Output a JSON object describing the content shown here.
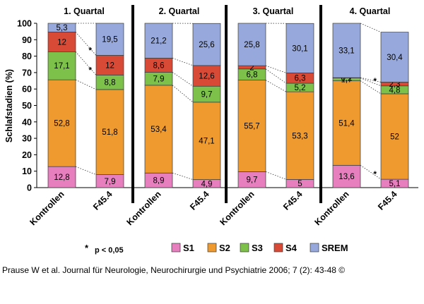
{
  "chart_data": {
    "type": "bar",
    "stacked": true,
    "ylabel": "Schlafstadien (%)",
    "ylim": [
      0,
      100
    ],
    "yticks": [
      0,
      10,
      20,
      30,
      40,
      50,
      60,
      70,
      80,
      90,
      100
    ],
    "stages": [
      "S1",
      "S2",
      "S3",
      "S4",
      "SREM"
    ],
    "colors": {
      "S1": "#e77fbf",
      "S2": "#ee9a2e",
      "S3": "#7dc04a",
      "S4": "#d94a36",
      "SREM": "#97a9dc"
    },
    "panels": [
      {
        "title": "1. Quartal",
        "bars": [
          {
            "category": "Kontrollen",
            "values": {
              "S1": 12.8,
              "S2": 52.8,
              "S3": 17.1,
              "S4": 12,
              "SREM": 5.3
            }
          },
          {
            "category": "F45.4",
            "values": {
              "S1": 7.9,
              "S2": 51.8,
              "S3": 8.8,
              "S4": 12,
              "SREM": 19.5
            }
          }
        ],
        "significance": [
          "S3",
          "S4"
        ]
      },
      {
        "title": "2. Quartal",
        "bars": [
          {
            "category": "Kontrollen",
            "values": {
              "S1": 8.9,
              "S2": 53.4,
              "S3": 7.9,
              "S4": 8.6,
              "SREM": 21.2
            }
          },
          {
            "category": "F45.4",
            "values": {
              "S1": 4.9,
              "S2": 47.1,
              "S3": 9.7,
              "S4": 12.6,
              "SREM": 25.6
            }
          }
        ],
        "significance": []
      },
      {
        "title": "3. Quartal",
        "bars": [
          {
            "category": "Kontrollen",
            "values": {
              "S1": 9.7,
              "S2": 55.7,
              "S3": 6.8,
              "S4": 2,
              "SREM": 25.8
            }
          },
          {
            "category": "F45.4",
            "values": {
              "S1": 5,
              "S2": 53.3,
              "S3": 5.2,
              "S4": 6.3,
              "SREM": 30.1
            }
          }
        ],
        "significance": []
      },
      {
        "title": "4. Quartal",
        "bars": [
          {
            "category": "Kontrollen",
            "values": {
              "S1": 13.6,
              "S2": 51.4,
              "S3": 1.7,
              "S4": 0.2,
              "SREM": 33.1
            }
          },
          {
            "category": "F45.4",
            "values": {
              "S1": 5.1,
              "S2": 52,
              "S3": 4.8,
              "S4": 2.3,
              "SREM": 30.4
            }
          }
        ],
        "significance": [
          "S1",
          "S3"
        ]
      }
    ],
    "significance_note": {
      "marker": "*",
      "text": "p < 0,05"
    },
    "legend": [
      "S1",
      "S2",
      "S3",
      "S4",
      "SREM"
    ]
  },
  "citation": "Prause W et al. Journal für Neurologie, Neurochirurgie und Psychiatrie 2006; 7 (2): 43-48 ©"
}
